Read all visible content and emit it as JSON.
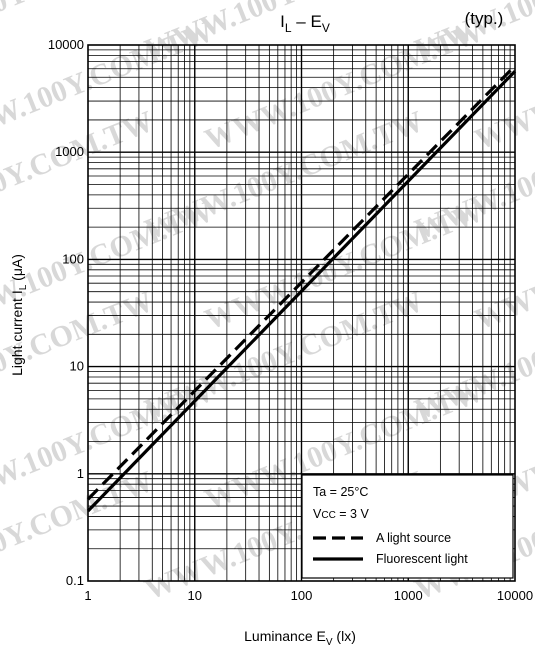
{
  "watermark": "WWW.100Y.COM.TW",
  "chart_data": {
    "type": "line",
    "title": {
      "main": "I",
      "main_sub": "L",
      "dash": " – E",
      "dash_sub": "V"
    },
    "title_note": "(typ.)",
    "xlabel": {
      "main": "Luminance   E",
      "sub": "V",
      "unit": "   (lx)"
    },
    "ylabel": {
      "main": "Light current   I",
      "sub": "L",
      "unit": "   (μA)"
    },
    "xscale": "log",
    "yscale": "log",
    "xlim": [
      1,
      10000
    ],
    "ylim": [
      0.1,
      10000
    ],
    "grid": true,
    "x_ticks": [
      {
        "value": 1,
        "label": "1"
      },
      {
        "value": 10,
        "label": "10"
      },
      {
        "value": 100,
        "label": "100"
      },
      {
        "value": 1000,
        "label": "1000"
      },
      {
        "value": 10000,
        "label": "10000"
      }
    ],
    "y_ticks": [
      {
        "value": 0.1,
        "label": "0.1"
      },
      {
        "value": 1,
        "label": "1"
      },
      {
        "value": 10,
        "label": "10"
      },
      {
        "value": 100,
        "label": "100"
      },
      {
        "value": 1000,
        "label": "1000"
      },
      {
        "value": 10000,
        "label": "10000"
      }
    ],
    "conditions": {
      "ta": "Ta = 25°C",
      "vcc_main": "V",
      "vcc_sub": "CC",
      "vcc_rest": " = 3 V"
    },
    "legend_position": "bottom-right",
    "series": [
      {
        "name": "A light source",
        "style": "dashed",
        "x": [
          1,
          10000
        ],
        "y": [
          0.58,
          6400
        ]
      },
      {
        "name": "Fluorescent light",
        "style": "solid",
        "x": [
          1,
          10000
        ],
        "y": [
          0.45,
          5700
        ]
      }
    ]
  }
}
